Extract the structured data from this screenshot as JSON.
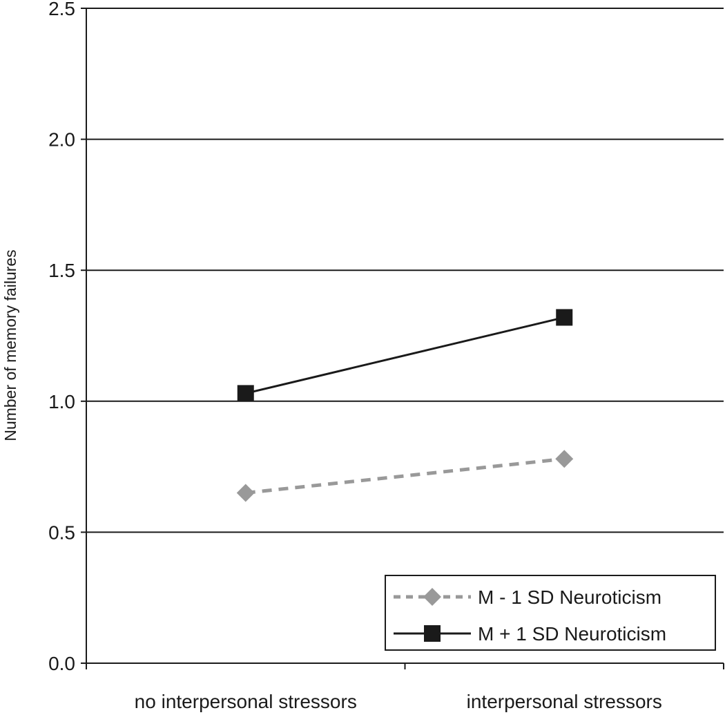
{
  "chart_data": {
    "type": "line",
    "title": "",
    "xlabel": "",
    "ylabel": "Number of memory failures",
    "categories": [
      "no interpersonal stressors",
      "interpersonal stressors"
    ],
    "ylim": [
      0.0,
      2.5
    ],
    "yticks": [
      "0.0",
      "0.5",
      "1.0",
      "1.5",
      "2.0",
      "2.5"
    ],
    "grid": true,
    "legend_position": "bottom-right",
    "series": [
      {
        "name": "M - 1 SD Neuroticism",
        "values": [
          0.65,
          0.78
        ],
        "color": "#999999",
        "marker": "diamond",
        "line_style": "dotted"
      },
      {
        "name": "M + 1 SD Neuroticism",
        "values": [
          1.03,
          1.32
        ],
        "color": "#1a1a1a",
        "marker": "square",
        "line_style": "solid"
      }
    ]
  }
}
